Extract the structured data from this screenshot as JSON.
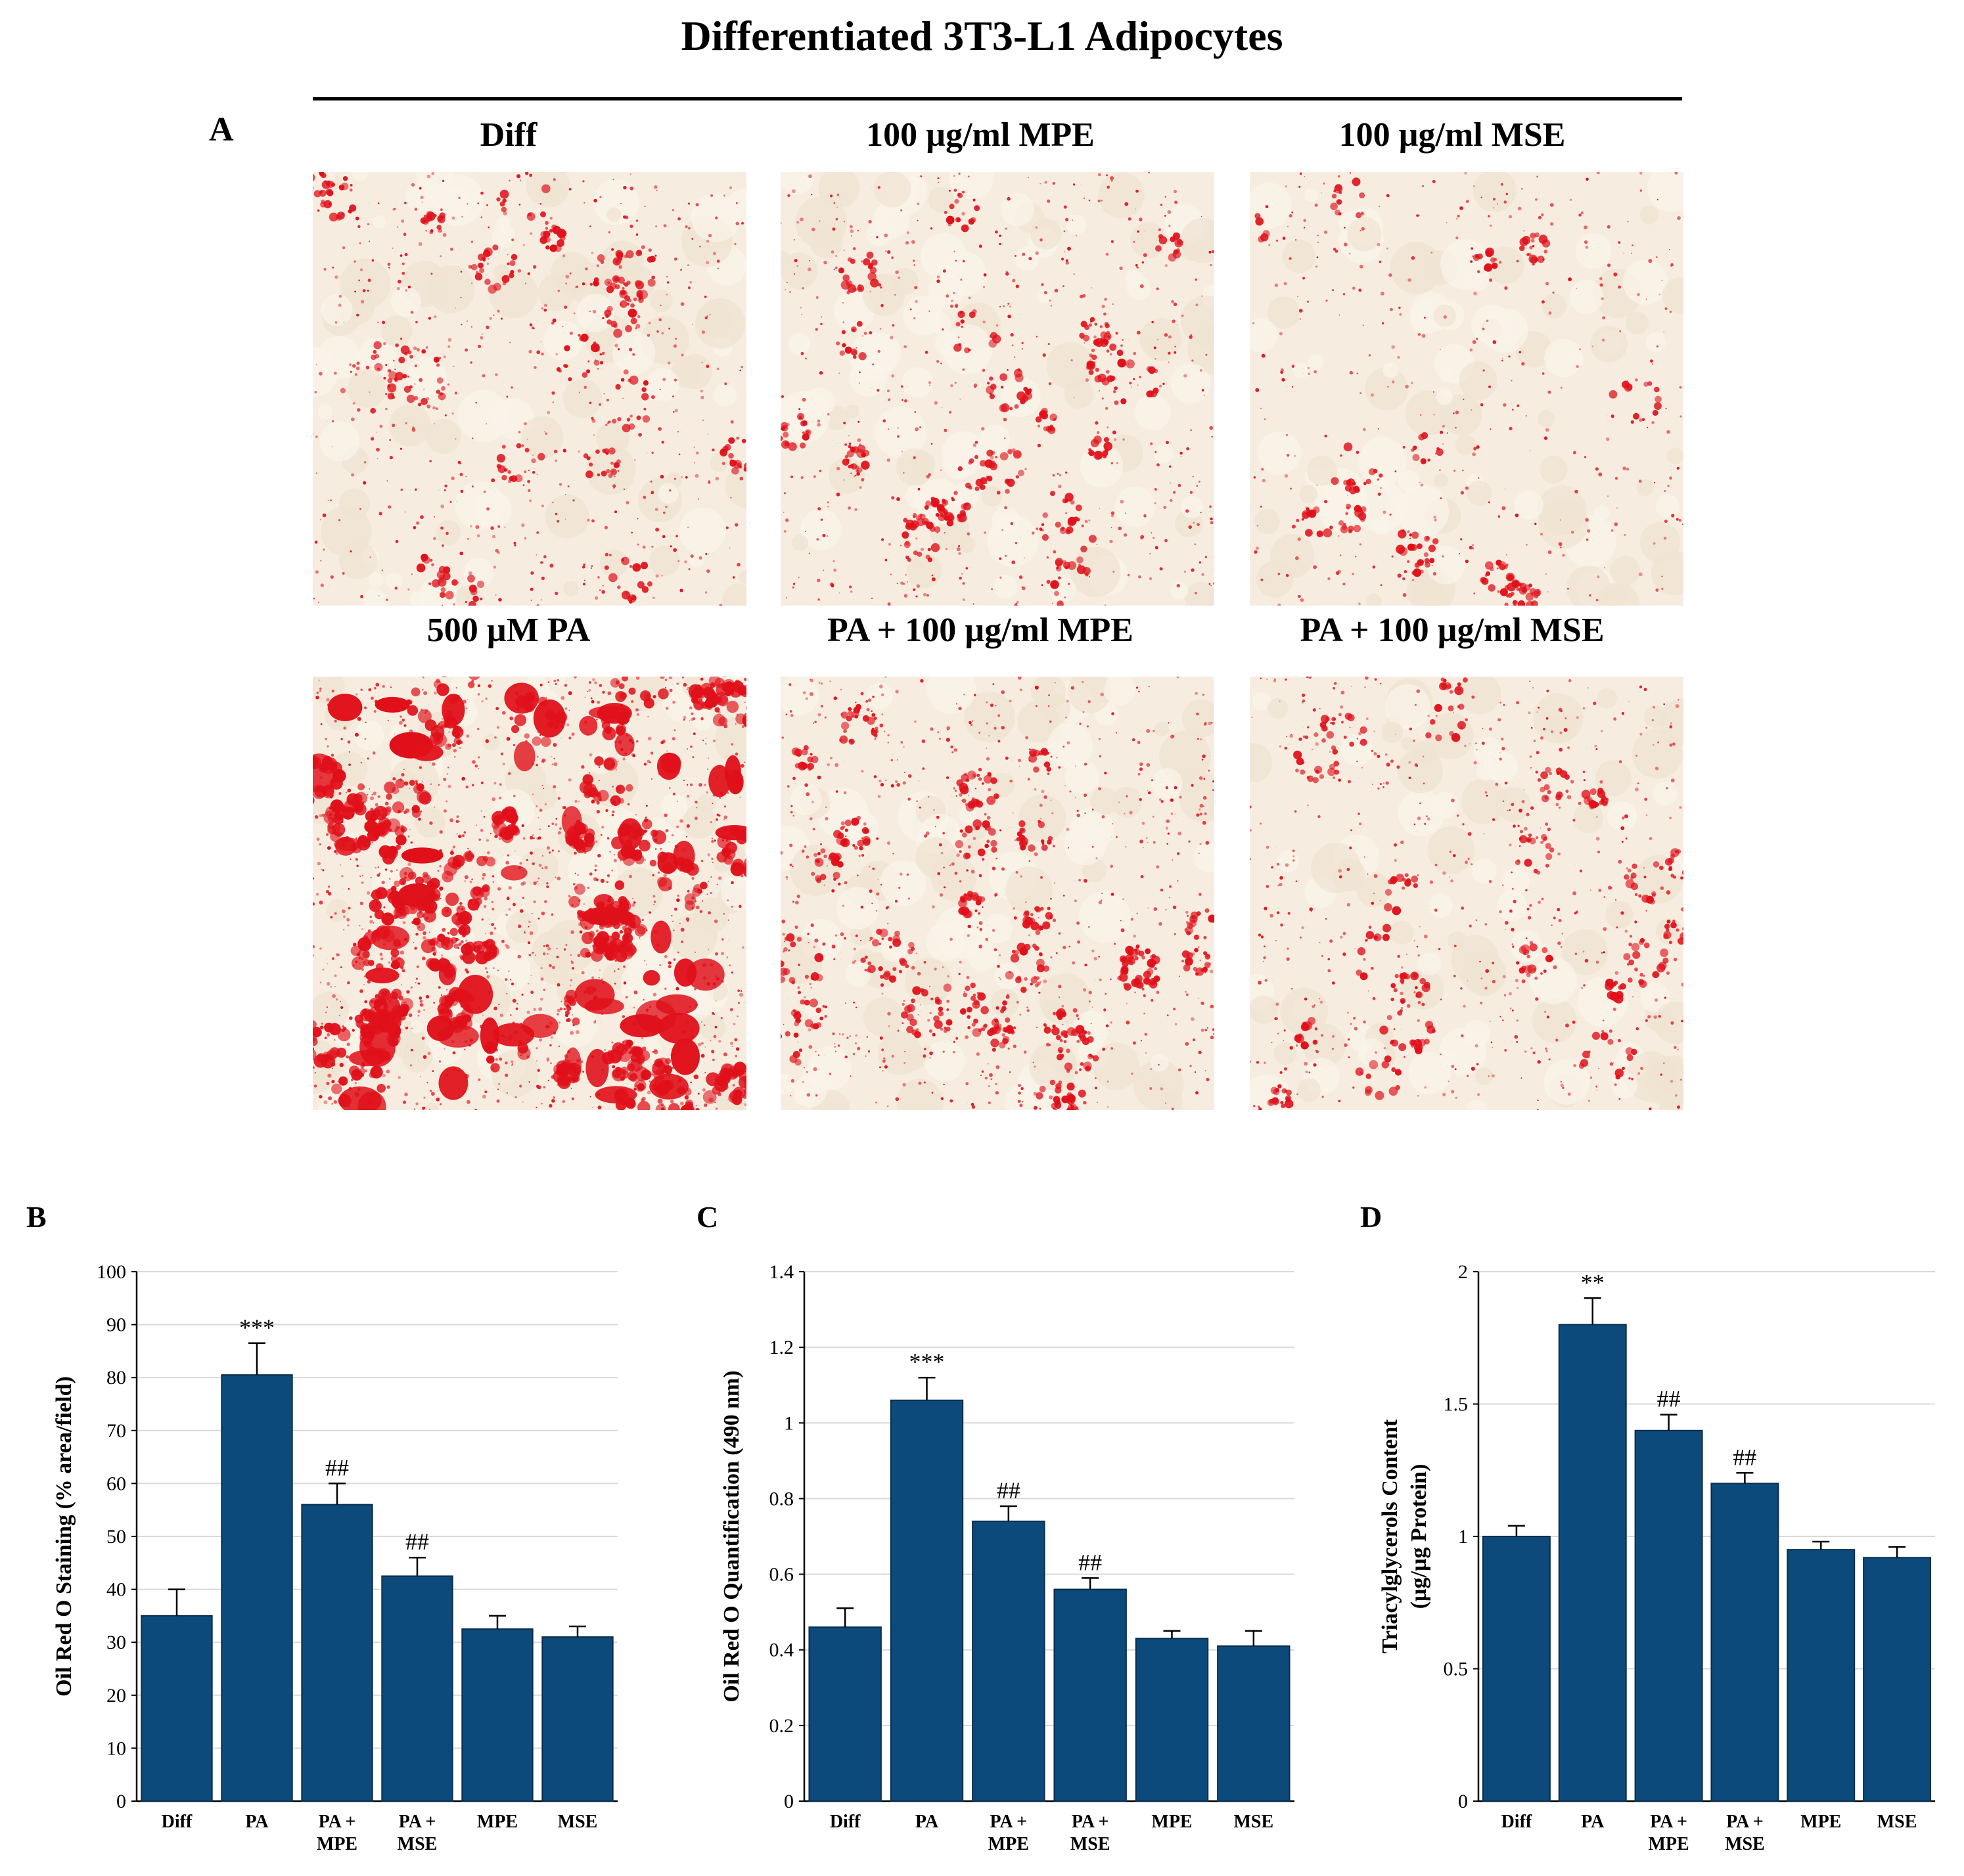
{
  "figure": {
    "title": "Differentiated 3T3-L1 Adipocytes",
    "panel_a": {
      "letter": "A",
      "images": [
        {
          "label": "Diff",
          "stain_level": "moderate"
        },
        {
          "label": "100 µg/ml MPE",
          "stain_level": "moderate"
        },
        {
          "label": "100 µg/ml MSE",
          "stain_level": "low"
        },
        {
          "label": "500 µM PA",
          "stain_level": "high"
        },
        {
          "label": "PA + 100 µg/ml MPE",
          "stain_level": "moderate-high"
        },
        {
          "label": "PA + 100 µg/ml MSE",
          "stain_level": "moderate"
        }
      ]
    }
  },
  "colors": {
    "bar": "#0d4a7c",
    "bar_edge": "#0a2d4d",
    "grid": "#d9d9d9",
    "stain": "#e0101a",
    "background_cells": "#f6ede0"
  },
  "chart_data": [
    {
      "panel": "B",
      "type": "bar",
      "categories": [
        "Diff",
        "PA",
        "PA +\nMPE",
        "PA +\nMSE",
        "MPE",
        "MSE"
      ],
      "values": [
        35,
        80.5,
        56,
        42.5,
        32.5,
        31
      ],
      "errors": [
        5,
        6,
        4,
        3.5,
        2.5,
        2
      ],
      "annotations": [
        "",
        "***",
        "##",
        "##",
        "",
        ""
      ],
      "ylabel": "Oil Red O Staining (% area/field)",
      "ylim": [
        0,
        100
      ],
      "yticks": [
        "0",
        "10",
        "20",
        "30",
        "40",
        "50",
        "60",
        "70",
        "80",
        "90",
        "100"
      ],
      "grid": true
    },
    {
      "panel": "C",
      "type": "bar",
      "categories": [
        "Diff",
        "PA",
        "PA +\nMPE",
        "PA +\nMSE",
        "MPE",
        "MSE"
      ],
      "values": [
        0.46,
        1.06,
        0.74,
        0.56,
        0.43,
        0.41
      ],
      "errors": [
        0.05,
        0.06,
        0.04,
        0.03,
        0.02,
        0.04
      ],
      "annotations": [
        "",
        "***",
        "##",
        "##",
        "",
        ""
      ],
      "ylabel": "Oil Red O Quantification (490 nm)",
      "ylim": [
        0,
        1.4
      ],
      "yticks": [
        "0",
        "0.2",
        "0.4",
        "0.6",
        "0.8",
        "1",
        "1.2",
        "1.4"
      ],
      "grid": true
    },
    {
      "panel": "D",
      "type": "bar",
      "categories": [
        "Diff",
        "PA",
        "PA +\nMPE",
        "PA +\nMSE",
        "MPE",
        "MSE"
      ],
      "values": [
        1.0,
        1.8,
        1.4,
        1.2,
        0.95,
        0.92
      ],
      "errors": [
        0.04,
        0.1,
        0.06,
        0.04,
        0.03,
        0.04
      ],
      "annotations": [
        "",
        "**",
        "##",
        "##",
        "",
        ""
      ],
      "ylabel": "Triacylglycerols Content\n(µg/µg Protein)",
      "ylim": [
        0,
        2
      ],
      "yticks": [
        "0",
        "0.5",
        "1",
        "1.5",
        "2"
      ],
      "grid": true
    }
  ]
}
